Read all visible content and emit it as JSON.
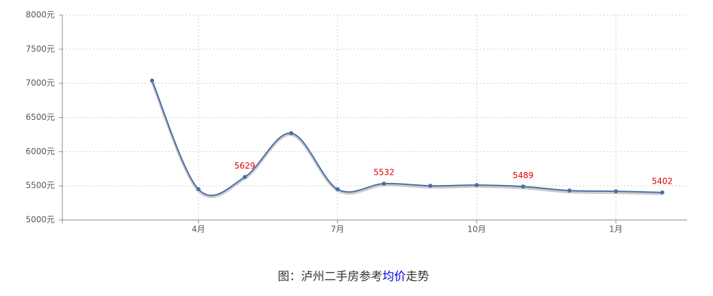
{
  "chart_data": {
    "type": "line",
    "caption": [
      "图：泸州二手房参考",
      "均价",
      "走势"
    ],
    "categories": [
      null,
      "4月",
      null,
      null,
      "7月",
      null,
      null,
      "10月",
      null,
      null,
      "1月",
      null
    ],
    "values": [
      7040,
      5450,
      5629,
      6270,
      5450,
      5532,
      5500,
      5510,
      5489,
      5430,
      5420,
      5402
    ],
    "value_labels": [
      null,
      null,
      "5629",
      null,
      null,
      "5532",
      null,
      null,
      "5489",
      null,
      null,
      "5402"
    ],
    "color": "#4a6fa5",
    "label_color": "#e00000",
    "ylim": [
      5000,
      8000
    ],
    "yticks": [
      {
        "value": 5000,
        "label": "5000元"
      },
      {
        "value": 5500,
        "label": "5500元"
      },
      {
        "value": 6000,
        "label": "6000元"
      },
      {
        "value": 6500,
        "label": "6500元"
      },
      {
        "value": 7000,
        "label": "7000元"
      },
      {
        "value": 7500,
        "label": "7500元"
      },
      {
        "value": 8000,
        "label": "8000元"
      }
    ],
    "grid": true
  }
}
